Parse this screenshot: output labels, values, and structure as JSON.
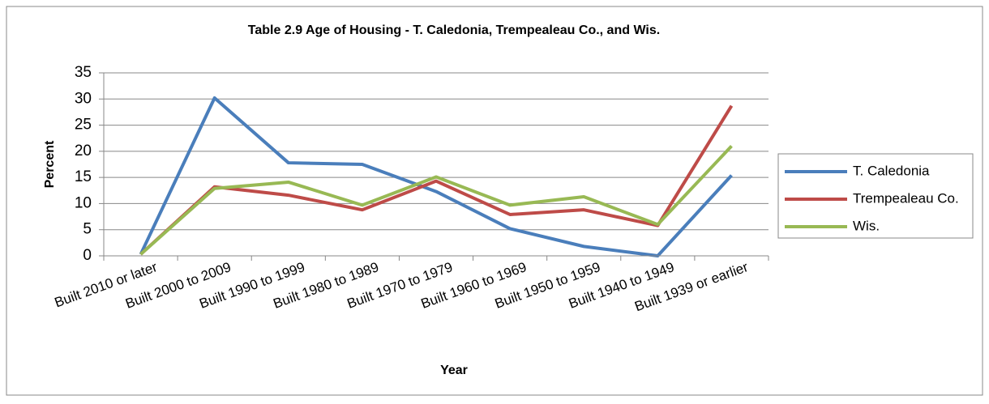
{
  "chart_data": {
    "type": "line",
    "title": "Table 2.9 Age of Housing - T. Caledonia, Trempealeau  Co., and Wis.",
    "x_label": "Year",
    "y_label": "Percent",
    "categories": [
      "Built 2010 or later",
      "Built 2000 to 2009",
      "Built 1990 to 1999",
      "Built 1980 to 1989",
      "Built 1970 to 1979",
      "Built 1960 to 1969",
      "Built 1950 to 1959",
      "Built 1940 to 1949",
      "Built 1939 or earlier"
    ],
    "series": [
      {
        "name": "T. Caledonia",
        "color": "#4a7ebb",
        "values": [
          0.3,
          30.2,
          17.8,
          17.5,
          12.3,
          5.2,
          1.8,
          0,
          15.4
        ]
      },
      {
        "name": "Trempealeau Co.",
        "color": "#be4b48",
        "values": [
          0.3,
          13.2,
          11.6,
          8.8,
          14.3,
          7.9,
          8.8,
          5.8,
          28.7
        ]
      },
      {
        "name": "Wis.",
        "color": "#98b954",
        "values": [
          0.3,
          12.9,
          14.1,
          9.7,
          15.1,
          9.7,
          11.3,
          6.0,
          21.0
        ]
      }
    ],
    "ylim": [
      0,
      35
    ],
    "yticks": [
      0,
      5,
      10,
      15,
      20,
      25,
      30,
      35
    ],
    "grid": true,
    "legend": "right"
  }
}
